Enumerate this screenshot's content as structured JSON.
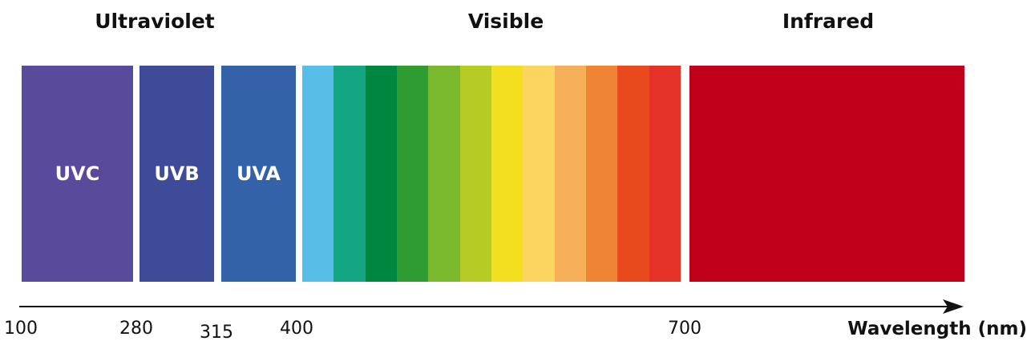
{
  "regions": {
    "ultraviolet": "Ultraviolet",
    "visible": "Visible",
    "infrared": "Infrared"
  },
  "bands": [
    {
      "label": "UVC",
      "color": "#5A4A9B"
    },
    {
      "label": "UVB",
      "color": "#3D4B98"
    },
    {
      "label": "UVA",
      "color": "#3362A9"
    },
    {
      "label": "",
      "color": "#C1001B"
    }
  ],
  "visible_colors": [
    "#58BEE8",
    "#14A683",
    "#00873F",
    "#2F9B33",
    "#7AB82D",
    "#B6CC24",
    "#F3DF1F",
    "#FCD460",
    "#F5AF59",
    "#EF8434",
    "#E84A1E",
    "#E6332A"
  ],
  "axis": {
    "ticks": [
      "100",
      "280",
      "315",
      "400",
      "700"
    ],
    "title": "Wavelength (nm)"
  }
}
